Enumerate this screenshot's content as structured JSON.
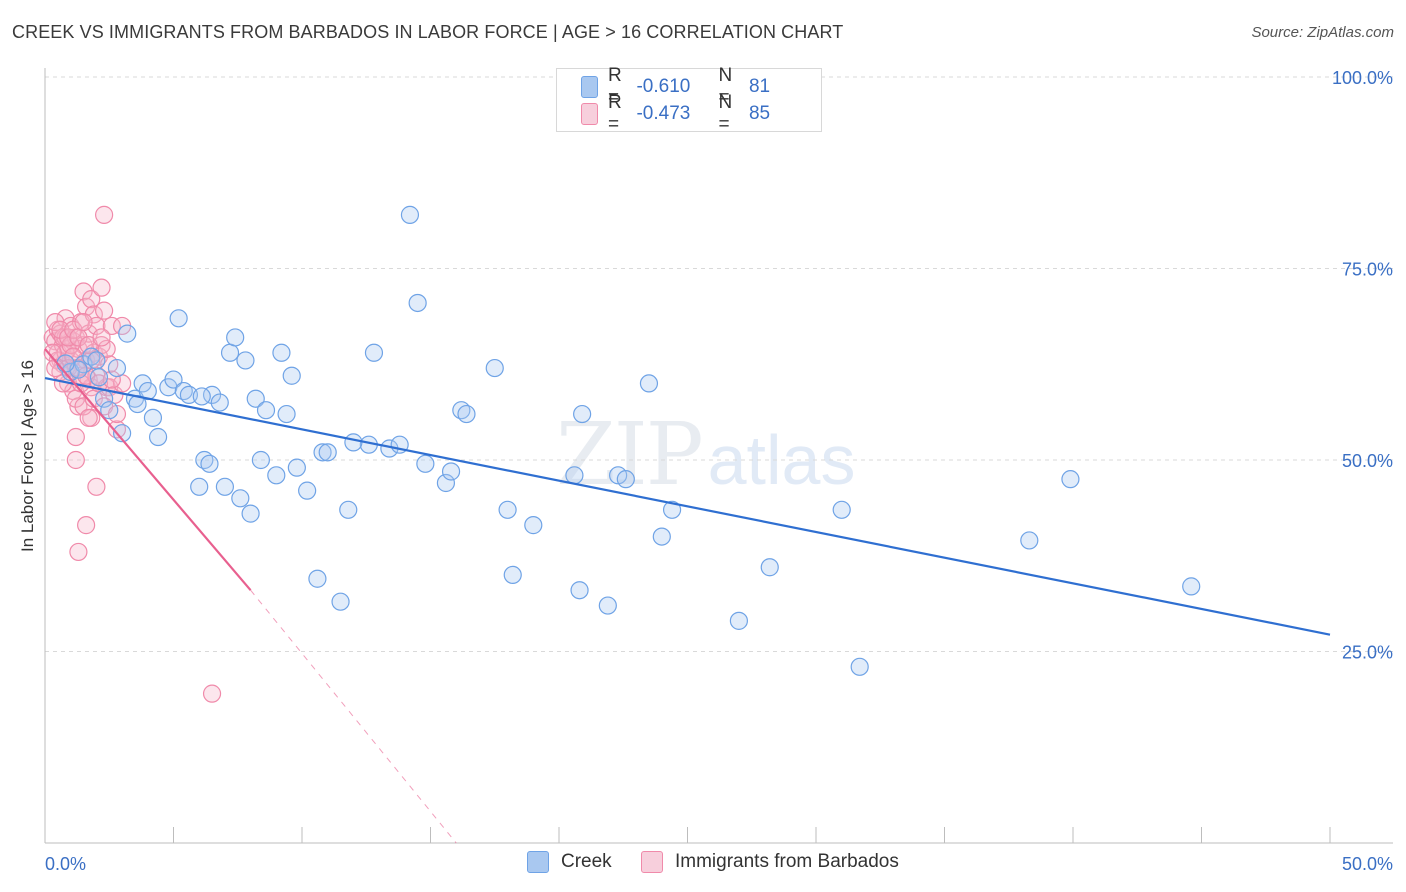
{
  "header": {
    "title": "CREEK VS IMMIGRANTS FROM BARBADOS IN LABOR FORCE | AGE > 16 CORRELATION CHART",
    "source": "Source: ZipAtlas.com"
  },
  "watermark": {
    "zip": "ZIP",
    "atlas": "atlas"
  },
  "legend": {
    "rows": [
      {
        "r_label": "R =",
        "r_value": "-0.610",
        "n_label": "N =",
        "n_value": "81",
        "color": "#a9c8f0"
      },
      {
        "r_label": "R =",
        "r_value": "-0.473",
        "n_label": "N =",
        "n_value": "85",
        "color": "#f7b8cb"
      }
    ]
  },
  "bottom_legend": {
    "creek": "Creek",
    "barbados": "Immigrants from Barbados"
  },
  "colors": {
    "creek": "#6fa3e6",
    "creek_line": "#2f6fd1",
    "barbados": "#f08aaa",
    "barbados_line": "#e8608f",
    "tick_text": "#3a6fc4"
  },
  "chart_data": {
    "type": "scatter",
    "title": "CREEK VS IMMIGRANTS FROM BARBADOS IN LABOR FORCE | AGE > 16 CORRELATION CHART",
    "xlabel": "",
    "ylabel": "In Labor Force | Age > 16",
    "xlim": [
      0,
      50
    ],
    "ylim": [
      0,
      100
    ],
    "x_tick_labels": [
      "0.0%",
      "50.0%"
    ],
    "y_tick_labels": [
      "25.0%",
      "50.0%",
      "75.0%",
      "100.0%"
    ],
    "y_ticks": [
      25,
      50,
      75,
      100
    ],
    "grid": true,
    "legend_position": "top-center",
    "series": [
      {
        "name": "Creek",
        "r": -0.61,
        "n": 81,
        "trend": {
          "x": [
            0,
            50
          ],
          "y": [
            60.7,
            27.2
          ]
        },
        "points": [
          [
            1.0,
            61.5
          ],
          [
            1.5,
            62.5
          ],
          [
            1.8,
            63.5
          ],
          [
            2.0,
            63.0
          ],
          [
            2.3,
            58.0
          ],
          [
            2.5,
            56.5
          ],
          [
            2.8,
            62.0
          ],
          [
            3.0,
            53.5
          ],
          [
            3.2,
            66.5
          ],
          [
            3.5,
            58.0
          ],
          [
            3.8,
            60.0
          ],
          [
            4.0,
            59.0
          ],
          [
            4.2,
            55.5
          ],
          [
            4.4,
            53.0
          ],
          [
            4.8,
            59.5
          ],
          [
            5.0,
            60.5
          ],
          [
            5.2,
            68.5
          ],
          [
            5.4,
            59.0
          ],
          [
            5.6,
            58.5
          ],
          [
            6.0,
            46.5
          ],
          [
            6.2,
            50.0
          ],
          [
            6.4,
            49.5
          ],
          [
            6.5,
            58.5
          ],
          [
            6.8,
            57.5
          ],
          [
            7.0,
            46.5
          ],
          [
            7.2,
            64.0
          ],
          [
            7.4,
            66.0
          ],
          [
            7.6,
            45.0
          ],
          [
            7.8,
            63.0
          ],
          [
            8.0,
            43.0
          ],
          [
            8.2,
            58.0
          ],
          [
            8.4,
            50.0
          ],
          [
            8.6,
            56.5
          ],
          [
            9.0,
            48.0
          ],
          [
            9.2,
            64.0
          ],
          [
            9.6,
            61.0
          ],
          [
            9.8,
            49.0
          ],
          [
            10.2,
            46.0
          ],
          [
            10.6,
            34.5
          ],
          [
            10.8,
            51.0
          ],
          [
            11.0,
            51.0
          ],
          [
            11.5,
            31.5
          ],
          [
            11.8,
            43.5
          ],
          [
            12.6,
            52.0
          ],
          [
            12.8,
            64.0
          ],
          [
            13.4,
            51.5
          ],
          [
            13.8,
            52.0
          ],
          [
            14.2,
            82.0
          ],
          [
            14.5,
            70.5
          ],
          [
            14.8,
            49.5
          ],
          [
            15.6,
            47.0
          ],
          [
            15.8,
            48.5
          ],
          [
            16.2,
            56.5
          ],
          [
            16.4,
            56.0
          ],
          [
            17.5,
            62.0
          ],
          [
            18.0,
            43.5
          ],
          [
            18.2,
            35.0
          ],
          [
            19.0,
            41.5
          ],
          [
            20.6,
            48.0
          ],
          [
            20.8,
            33.0
          ],
          [
            20.9,
            56.0
          ],
          [
            21.9,
            31.0
          ],
          [
            22.3,
            48.0
          ],
          [
            22.6,
            47.5
          ],
          [
            23.5,
            60.0
          ],
          [
            24.0,
            40.0
          ],
          [
            24.4,
            43.5
          ],
          [
            27.0,
            29.0
          ],
          [
            28.2,
            36.0
          ],
          [
            31.0,
            43.5
          ],
          [
            31.7,
            23.0
          ],
          [
            38.3,
            39.5
          ],
          [
            39.9,
            47.5
          ],
          [
            44.6,
            33.5
          ],
          [
            1.3,
            61.8
          ],
          [
            2.1,
            60.8
          ],
          [
            3.6,
            57.3
          ],
          [
            6.1,
            58.3
          ],
          [
            9.4,
            56.0
          ],
          [
            12.0,
            52.3
          ],
          [
            0.8,
            62.6
          ]
        ]
      },
      {
        "name": "Immigrants from Barbados",
        "r": -0.473,
        "n": 85,
        "trend": {
          "x": [
            0,
            8
          ],
          "y": [
            64.5,
            33.0
          ]
        },
        "trend_dashed": {
          "x": [
            8,
            16
          ],
          "y": [
            33.0,
            0.0
          ]
        },
        "points": [
          [
            0.3,
            66.0
          ],
          [
            0.4,
            65.5
          ],
          [
            0.5,
            67.0
          ],
          [
            0.5,
            64.0
          ],
          [
            0.6,
            66.5
          ],
          [
            0.6,
            63.0
          ],
          [
            0.7,
            65.0
          ],
          [
            0.7,
            62.5
          ],
          [
            0.8,
            66.0
          ],
          [
            0.8,
            68.5
          ],
          [
            0.9,
            64.5
          ],
          [
            0.9,
            60.0
          ],
          [
            1.0,
            67.5
          ],
          [
            1.0,
            63.0
          ],
          [
            1.1,
            65.5
          ],
          [
            1.1,
            59.0
          ],
          [
            1.2,
            66.0
          ],
          [
            1.2,
            62.0
          ],
          [
            1.3,
            64.5
          ],
          [
            1.3,
            57.0
          ],
          [
            1.4,
            68.0
          ],
          [
            1.4,
            61.0
          ],
          [
            1.5,
            65.0
          ],
          [
            1.5,
            72.0
          ],
          [
            1.6,
            63.0
          ],
          [
            1.6,
            70.0
          ],
          [
            1.7,
            60.5
          ],
          [
            1.7,
            66.5
          ],
          [
            1.8,
            71.0
          ],
          [
            1.8,
            59.5
          ],
          [
            1.9,
            64.0
          ],
          [
            1.9,
            69.0
          ],
          [
            2.0,
            61.0
          ],
          [
            2.0,
            67.5
          ],
          [
            2.1,
            63.5
          ],
          [
            2.2,
            72.5
          ],
          [
            2.2,
            65.0
          ],
          [
            2.3,
            69.5
          ],
          [
            2.4,
            59.5
          ],
          [
            2.5,
            62.5
          ],
          [
            2.6,
            67.5
          ],
          [
            1.2,
            53.0
          ],
          [
            1.2,
            50.0
          ],
          [
            1.3,
            38.0
          ],
          [
            1.6,
            41.5
          ],
          [
            1.8,
            55.5
          ],
          [
            2.0,
            46.5
          ],
          [
            2.3,
            82.0
          ],
          [
            2.5,
            59.5
          ],
          [
            2.7,
            58.5
          ],
          [
            3.0,
            60.0
          ],
          [
            3.0,
            67.5
          ],
          [
            2.8,
            54.0
          ],
          [
            6.5,
            19.5
          ],
          [
            0.4,
            68.0
          ],
          [
            0.5,
            63.0
          ],
          [
            0.6,
            61.5
          ],
          [
            0.7,
            66.0
          ],
          [
            0.8,
            64.0
          ],
          [
            0.9,
            62.0
          ],
          [
            1.0,
            65.0
          ],
          [
            1.1,
            63.5
          ],
          [
            1.2,
            58.0
          ],
          [
            1.3,
            62.0
          ],
          [
            1.4,
            60.0
          ],
          [
            1.5,
            57.0
          ],
          [
            1.6,
            61.0
          ],
          [
            1.7,
            55.5
          ],
          [
            1.8,
            63.0
          ],
          [
            1.9,
            58.0
          ],
          [
            2.1,
            60.0
          ],
          [
            2.3,
            57.0
          ],
          [
            2.4,
            64.5
          ],
          [
            2.6,
            60.5
          ],
          [
            2.8,
            56.0
          ],
          [
            0.3,
            64.0
          ],
          [
            0.4,
            62.0
          ],
          [
            0.6,
            67.0
          ],
          [
            0.7,
            60.0
          ],
          [
            0.9,
            66.0
          ],
          [
            1.1,
            67.0
          ],
          [
            1.3,
            66.0
          ],
          [
            1.5,
            68.0
          ],
          [
            1.7,
            65.0
          ],
          [
            2.2,
            66.0
          ]
        ]
      }
    ]
  }
}
